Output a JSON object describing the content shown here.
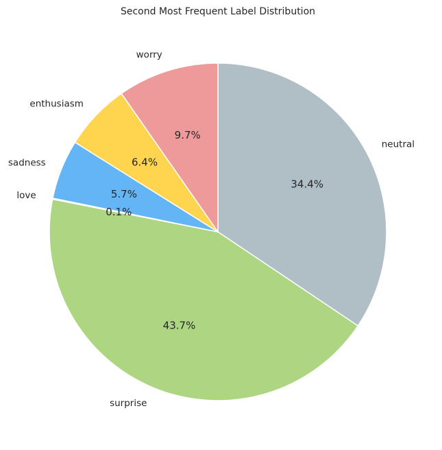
{
  "chart_data": {
    "type": "pie",
    "title": "Second Most Frequent Label Distribution",
    "start_angle_deg": 90,
    "direction": "clockwise",
    "wedge_edge_color": "#ffffff",
    "slices": [
      {
        "label": "neutral",
        "value": 34.4,
        "pct_label": "34.4%",
        "color": "#b0bec5"
      },
      {
        "label": "surprise",
        "value": 43.7,
        "pct_label": "43.7%",
        "color": "#aed581"
      },
      {
        "label": "love",
        "value": 0.1,
        "pct_label": "0.1%",
        "color": "#e0e0e0"
      },
      {
        "label": "sadness",
        "value": 5.7,
        "pct_label": "5.7%",
        "color": "#64b5f6"
      },
      {
        "label": "enthusiasm",
        "value": 6.4,
        "pct_label": "6.4%",
        "color": "#ffd54f"
      },
      {
        "label": "worry",
        "value": 9.7,
        "pct_label": "9.7%",
        "color": "#ef9a9a"
      }
    ]
  }
}
